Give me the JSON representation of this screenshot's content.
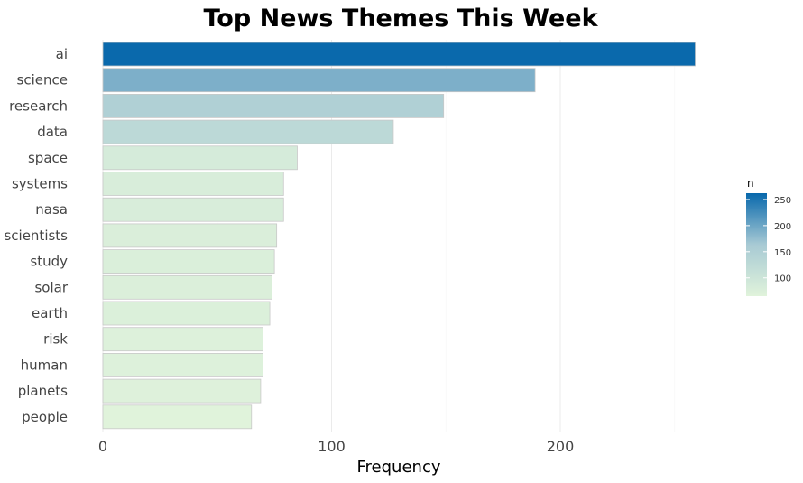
{
  "chart_data": {
    "type": "bar",
    "orientation": "horizontal",
    "title": "Top News Themes This Week",
    "xlabel": "Frequency",
    "ylabel": "",
    "categories": [
      "ai",
      "science",
      "research",
      "data",
      "space",
      "systems",
      "nasa",
      "scientists",
      "study",
      "solar",
      "earth",
      "risk",
      "human",
      "planets",
      "people"
    ],
    "values": [
      259,
      189,
      149,
      127,
      85,
      79,
      79,
      76,
      75,
      74,
      73,
      70,
      70,
      69,
      65
    ],
    "xlim": [
      0,
      265
    ],
    "xticks": [
      "0",
      "100",
      "200"
    ],
    "grid": "vertical major lines",
    "legend": {
      "title": "n",
      "ticks": [
        "250",
        "200",
        "150",
        "100"
      ],
      "placement": "right",
      "low_color": "#e0f3db",
      "high_color": "#0868ac"
    }
  }
}
